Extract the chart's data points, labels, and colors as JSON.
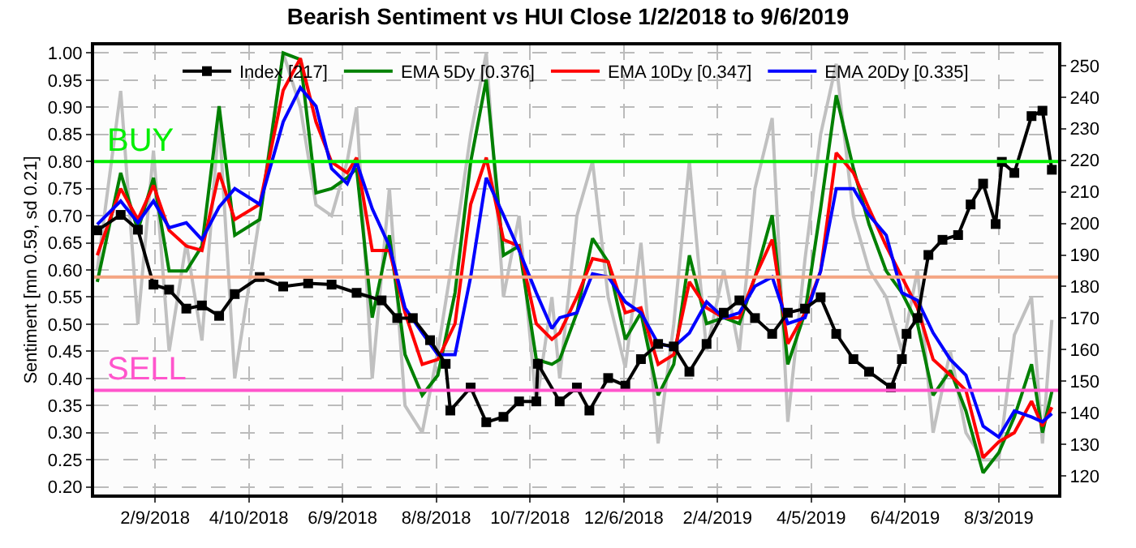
{
  "chart_data": {
    "type": "line",
    "title": "Bearish Sentiment vs HUI Close 1/2/2018 to 9/6/2019",
    "ylabel": "Sentiment [mn 0.59, sd 0.21]",
    "xlim": [
      "2018-01-01",
      "2019-09-10"
    ],
    "xticks": [
      {
        "value": "2018-02-09",
        "label": "2/9/2018"
      },
      {
        "value": "2018-04-10",
        "label": "4/10/2018"
      },
      {
        "value": "2018-06-09",
        "label": "6/9/2018"
      },
      {
        "value": "2018-08-08",
        "label": "8/8/2018"
      },
      {
        "value": "2018-10-07",
        "label": "10/7/2018"
      },
      {
        "value": "2018-12-06",
        "label": "12/6/2018"
      },
      {
        "value": "2019-02-04",
        "label": "2/4/2019"
      },
      {
        "value": "2019-04-05",
        "label": "4/5/2019"
      },
      {
        "value": "2019-06-04",
        "label": "6/4/2019"
      },
      {
        "value": "2019-08-03",
        "label": "8/3/2019"
      }
    ],
    "ylim": [
      0.186,
      1.014
    ],
    "yticks": [
      {
        "value": 0.2,
        "label": "0.20"
      },
      {
        "value": 0.25,
        "label": "0.25"
      },
      {
        "value": 0.3,
        "label": "0.30"
      },
      {
        "value": 0.35,
        "label": "0.35"
      },
      {
        "value": 0.4,
        "label": "0.40"
      },
      {
        "value": 0.45,
        "label": "0.45"
      },
      {
        "value": 0.5,
        "label": "0.50"
      },
      {
        "value": 0.55,
        "label": "0.55"
      },
      {
        "value": 0.6,
        "label": "0.60"
      },
      {
        "value": 0.65,
        "label": "0.65"
      },
      {
        "value": 0.7,
        "label": "0.70"
      },
      {
        "value": 0.75,
        "label": "0.75"
      },
      {
        "value": 0.8,
        "label": "0.80"
      },
      {
        "value": 0.85,
        "label": "0.85"
      },
      {
        "value": 0.9,
        "label": "0.90"
      },
      {
        "value": 0.95,
        "label": "0.95"
      },
      {
        "value": 1.0,
        "label": "1.00"
      }
    ],
    "y2lim": [
      114.1,
      256.4
    ],
    "y2ticks": [
      120,
      130,
      140,
      150,
      160,
      170,
      180,
      190,
      200,
      210,
      220,
      230,
      240,
      250
    ],
    "grid": true,
    "legend": "top",
    "line_style": "solid",
    "x": [
      "2018-01-03",
      "2018-01-18",
      "2018-01-29",
      "2018-02-08",
      "2018-02-18",
      "2018-03-01",
      "2018-03-11",
      "2018-03-22",
      "2018-04-01",
      "2018-04-17",
      "2018-05-02",
      "2018-05-13",
      "2018-05-23",
      "2018-06-02",
      "2018-06-12",
      "2018-06-18",
      "2018-06-28",
      "2018-07-09",
      "2018-07-19",
      "2018-07-30",
      "2018-08-09",
      "2018-08-20",
      "2018-08-30",
      "2018-09-09",
      "2018-09-20",
      "2018-09-30",
      "2018-10-11",
      "2018-10-21",
      "2018-10-26",
      "2018-11-06",
      "2018-11-16",
      "2018-11-26",
      "2018-12-07",
      "2018-12-17",
      "2018-12-28",
      "2019-01-07",
      "2019-01-17",
      "2019-01-28",
      "2019-02-08",
      "2019-02-18",
      "2019-02-28",
      "2019-03-11",
      "2019-03-21",
      "2019-04-01",
      "2019-04-11",
      "2019-04-21",
      "2019-05-02",
      "2019-05-12",
      "2019-05-23",
      "2019-06-02",
      "2019-06-12",
      "2019-06-22",
      "2019-07-03",
      "2019-07-13",
      "2019-07-24",
      "2019-08-03",
      "2019-08-13",
      "2019-08-24",
      "2019-08-31",
      "2019-09-06"
    ],
    "series": [
      {
        "color": "#c0c0c0",
        "marker": "none",
        "values": [
          0.6,
          0.93,
          0.5,
          0.82,
          0.45,
          0.65,
          0.47,
          0.88,
          0.4,
          0.7,
          1.0,
          0.9,
          0.72,
          0.7,
          0.8,
          0.9,
          0.4,
          0.75,
          0.35,
          0.3,
          0.45,
          0.65,
          0.85,
          1.0,
          0.55,
          0.7,
          0.35,
          0.55,
          0.4,
          0.7,
          0.8,
          0.55,
          0.42,
          0.65,
          0.28,
          0.5,
          0.8,
          0.45,
          0.6,
          0.45,
          0.75,
          0.88,
          0.32,
          0.62,
          0.85,
          0.98,
          0.7,
          0.6,
          0.55,
          0.45,
          0.6,
          0.3,
          0.45,
          0.3,
          0.25,
          0.25,
          0.48,
          0.55,
          0.28,
          0.508
        ]
      },
      {
        "name": "Index [217]",
        "color": "#000000",
        "marker": "square",
        "axis": "y2",
        "x": [
          "2018-01-03",
          "2018-01-18",
          "2018-01-29",
          "2018-02-08",
          "2018-02-18",
          "2018-03-01",
          "2018-03-11",
          "2018-03-22",
          "2018-04-01",
          "2018-04-17",
          "2018-05-02",
          "2018-05-18",
          "2018-06-02",
          "2018-06-18",
          "2018-07-04",
          "2018-07-14",
          "2018-07-24",
          "2018-08-04",
          "2018-08-14",
          "2018-08-17",
          "2018-08-30",
          "2018-09-09",
          "2018-09-20",
          "2018-09-30",
          "2018-10-11",
          "2018-10-12",
          "2018-10-26",
          "2018-11-06",
          "2018-11-14",
          "2018-11-26",
          "2018-12-07",
          "2018-12-17",
          "2018-12-28",
          "2019-01-07",
          "2019-01-17",
          "2019-01-28",
          "2019-02-08",
          "2019-02-18",
          "2019-02-28",
          "2019-03-11",
          "2019-03-21",
          "2019-04-01",
          "2019-04-11",
          "2019-04-21",
          "2019-05-02",
          "2019-05-12",
          "2019-05-26",
          "2019-06-02",
          "2019-06-05",
          "2019-06-12",
          "2019-06-19",
          "2019-06-28",
          "2019-07-08",
          "2019-07-16",
          "2019-07-24",
          "2019-08-01",
          "2019-08-05",
          "2019-08-13",
          "2019-08-24",
          "2019-08-31",
          "2019-09-06"
        ],
        "values": [
          197.8,
          202.7,
          198,
          180.6,
          179,
          173,
          174,
          170.7,
          177.6,
          183,
          180,
          181,
          180.6,
          178,
          175.6,
          170,
          170,
          163,
          155.5,
          140.7,
          148,
          137,
          138.7,
          143.6,
          143.6,
          155.5,
          143.6,
          148,
          140.7,
          151,
          148.6,
          157,
          161.8,
          161,
          153,
          161.8,
          171.7,
          175.6,
          170,
          165,
          171.7,
          173,
          176.6,
          165,
          157,
          153,
          148,
          157,
          165,
          170,
          190,
          194.8,
          196.3,
          206,
          212.6,
          199.8,
          219.5,
          216,
          234,
          235.7,
          217
        ]
      },
      {
        "name": "EMA 5Dy [0.376]",
        "color": "#008000",
        "marker": "none",
        "values": [
          0.578,
          0.779,
          0.673,
          0.77,
          0.598,
          0.598,
          0.644,
          0.902,
          0.664,
          0.693,
          1.0,
          0.988,
          0.742,
          0.75,
          0.77,
          0.787,
          0.512,
          0.664,
          0.444,
          0.369,
          0.406,
          0.558,
          0.799,
          0.951,
          0.627,
          0.644,
          0.435,
          0.426,
          0.435,
          0.521,
          0.658,
          0.615,
          0.472,
          0.521,
          0.369,
          0.426,
          0.627,
          0.501,
          0.512,
          0.501,
          0.587,
          0.701,
          0.426,
          0.521,
          0.713,
          0.922,
          0.787,
          0.684,
          0.598,
          0.558,
          0.501,
          0.369,
          0.415,
          0.34,
          0.226,
          0.263,
          0.329,
          0.426,
          0.3,
          0.376
        ]
      },
      {
        "name": "EMA 10Dy [0.347]",
        "color": "#ff0000",
        "marker": "none",
        "values": [
          0.627,
          0.75,
          0.693,
          0.756,
          0.673,
          0.644,
          0.636,
          0.779,
          0.693,
          0.721,
          0.931,
          0.99,
          0.873,
          0.799,
          0.779,
          0.807,
          0.636,
          0.636,
          0.521,
          0.426,
          0.435,
          0.501,
          0.721,
          0.807,
          0.656,
          0.644,
          0.501,
          0.472,
          0.484,
          0.55,
          0.621,
          0.615,
          0.521,
          0.53,
          0.426,
          0.444,
          0.578,
          0.53,
          0.512,
          0.512,
          0.587,
          0.656,
          0.464,
          0.521,
          0.598,
          0.816,
          0.779,
          0.713,
          0.644,
          0.587,
          0.53,
          0.435,
          0.406,
          0.378,
          0.254,
          0.283,
          0.3,
          0.358,
          0.312,
          0.347
        ]
      },
      {
        "name": "EMA 20Dy [0.335]",
        "color": "#0000ff",
        "marker": "none",
        "values": [
          0.684,
          0.727,
          0.687,
          0.727,
          0.678,
          0.687,
          0.656,
          0.716,
          0.75,
          0.721,
          0.873,
          0.936,
          0.902,
          0.787,
          0.759,
          0.799,
          0.713,
          0.644,
          0.53,
          0.484,
          0.444,
          0.444,
          0.587,
          0.77,
          0.701,
          0.636,
          0.558,
          0.492,
          0.512,
          0.521,
          0.593,
          0.587,
          0.541,
          0.521,
          0.464,
          0.458,
          0.484,
          0.541,
          0.512,
          0.521,
          0.57,
          0.587,
          0.501,
          0.512,
          0.598,
          0.75,
          0.75,
          0.701,
          0.664,
          0.558,
          0.544,
          0.484,
          0.435,
          0.406,
          0.312,
          0.292,
          0.34,
          0.329,
          0.32,
          0.335
        ]
      }
    ],
    "ref_lines": [
      {
        "axis": "y",
        "value": 0.8,
        "label": "BUY",
        "color": "#00ee00"
      },
      {
        "axis": "y",
        "value": 0.587,
        "color": "#f4a582"
      },
      {
        "axis": "y",
        "value": 0.378,
        "label": "SELL",
        "color": "#ff55cc"
      }
    ]
  }
}
